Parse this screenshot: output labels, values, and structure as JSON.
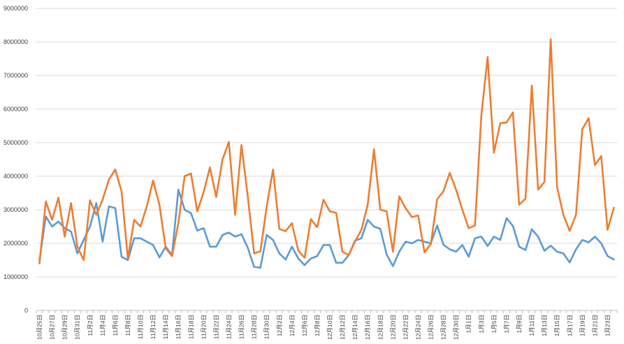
{
  "chart_data": {
    "type": "line",
    "title": "",
    "xlabel": "",
    "ylabel": "",
    "ylim": [
      0,
      9000000
    ],
    "yticks": [
      0,
      1000000,
      2000000,
      3000000,
      4000000,
      5000000,
      6000000,
      7000000,
      8000000,
      9000000
    ],
    "ytick_labels": [
      "0",
      "1000000",
      "2000000",
      "3000000",
      "4000000",
      "5000000",
      "6000000",
      "7000000",
      "8000000",
      "9000000"
    ],
    "grid": true,
    "legend": "none",
    "x": [
      "10月25日",
      "10月26日",
      "10月27日",
      "10月28日",
      "10月29日",
      "10月30日",
      "10月31日",
      "11月1日",
      "11月2日",
      "11月3日",
      "11月4日",
      "11月5日",
      "11月6日",
      "11月7日",
      "11月8日",
      "11月9日",
      "11月10日",
      "11月11日",
      "11月12日",
      "11月13日",
      "11月14日",
      "11月15日",
      "11月16日",
      "11月17日",
      "11月18日",
      "11月19日",
      "11月20日",
      "11月21日",
      "11月22日",
      "11月23日",
      "11月24日",
      "11月25日",
      "11月26日",
      "11月27日",
      "11月28日",
      "11月29日",
      "11月30日",
      "12月1日",
      "12月2日",
      "12月3日",
      "12月4日",
      "12月5日",
      "12月6日",
      "12月7日",
      "12月8日",
      "12月9日",
      "12月10日",
      "12月11日",
      "12月12日",
      "12月13日",
      "12月14日",
      "12月15日",
      "12月16日",
      "12月17日",
      "12月18日",
      "12月19日",
      "12月20日",
      "12月21日",
      "12月22日",
      "12月23日",
      "12月24日",
      "12月25日",
      "12月26日",
      "12月27日",
      "12月28日",
      "12月29日",
      "12月30日",
      "12月31日",
      "1月1日",
      "1月2日",
      "1月3日",
      "1月4日",
      "1月5日",
      "1月6日",
      "1月7日",
      "1月8日",
      "1月9日",
      "1月10日",
      "1月11日",
      "1月12日",
      "1月13日",
      "1月14日",
      "1月15日",
      "1月16日",
      "1月17日",
      "1月18日",
      "1月19日",
      "1月20日",
      "1月21日",
      "1月22日",
      "1月23日",
      "1月24日"
    ],
    "x_tick_labels": [
      "10月25日",
      "10月27日",
      "10月29日",
      "10月31日",
      "11月2日",
      "11月4日",
      "11月6日",
      "11月8日",
      "11月10日",
      "11月12日",
      "11月14日",
      "11月16日",
      "11月18日",
      "11月20日",
      "11月22日",
      "11月24日",
      "11月26日",
      "11月28日",
      "11月30日",
      "12月2日",
      "12月4日",
      "12月6日",
      "12月8日",
      "12月10日",
      "12月12日",
      "12月14日",
      "12月16日",
      "12月18日",
      "12月20日",
      "12月22日",
      "12月24日",
      "12月26日",
      "12月28日",
      "12月30日",
      "1月1日",
      "1月3日",
      "1月5日",
      "1月7日",
      "1月9日",
      "1月11日",
      "1月13日",
      "1月15日",
      "1月17日",
      "1月19日",
      "1月21日",
      "1月23日"
    ],
    "series": [
      {
        "color": "#5b9bd5",
        "values": [
          1500000,
          2800000,
          2500000,
          2650000,
          2450000,
          2350000,
          1700000,
          2100000,
          2500000,
          3200000,
          2050000,
          3100000,
          3050000,
          1600000,
          1500000,
          2150000,
          2150000,
          2050000,
          1950000,
          1580000,
          1900000,
          1650000,
          3600000,
          3000000,
          2900000,
          2380000,
          2450000,
          1900000,
          1900000,
          2250000,
          2320000,
          2200000,
          2270000,
          1870000,
          1300000,
          1270000,
          2250000,
          2100000,
          1700000,
          1520000,
          1900000,
          1550000,
          1350000,
          1550000,
          1620000,
          1950000,
          1950000,
          1420000,
          1420000,
          1650000,
          2080000,
          2150000,
          2700000,
          2500000,
          2430000,
          1670000,
          1320000,
          1750000,
          2050000,
          2000000,
          2100000,
          2050000,
          2000000,
          2530000,
          1960000,
          1820000,
          1750000,
          1950000,
          1600000,
          2150000,
          2200000,
          1920000,
          2200000,
          2100000,
          2750000,
          2520000,
          1900000,
          1800000,
          2420000,
          2200000,
          1780000,
          1930000,
          1750000,
          1700000,
          1430000,
          1820000,
          2100000,
          2030000,
          2200000,
          2000000,
          1620000,
          1520000
        ]
      },
      {
        "color": "#ed7d31",
        "values": [
          1400000,
          3250000,
          2700000,
          3360000,
          2200000,
          3200000,
          1900000,
          1500000,
          3280000,
          2850000,
          3300000,
          3900000,
          4200000,
          3550000,
          1550000,
          2700000,
          2500000,
          3100000,
          3870000,
          3150000,
          1850000,
          1620000,
          2600000,
          4000000,
          4080000,
          2950000,
          3520000,
          4260000,
          3380000,
          4500000,
          5020000,
          2850000,
          4930000,
          3400000,
          1700000,
          1760000,
          3100000,
          4200000,
          2430000,
          2360000,
          2600000,
          1780000,
          1570000,
          2720000,
          2480000,
          3300000,
          2950000,
          2910000,
          1750000,
          1650000,
          2060000,
          2400000,
          3150000,
          4800000,
          3000000,
          2950000,
          1750000,
          3400000,
          3050000,
          2780000,
          2830000,
          1730000,
          1980000,
          3310000,
          3550000,
          4100000,
          3600000,
          3000000,
          2450000,
          2530000,
          5800000,
          7550000,
          4700000,
          5580000,
          5600000,
          5900000,
          3150000,
          3330000,
          6700000,
          3600000,
          3830000,
          8080000,
          3680000,
          2850000,
          2370000,
          2850000,
          5400000,
          5730000,
          4330000,
          4600000,
          2400000,
          3060000
        ]
      }
    ]
  }
}
